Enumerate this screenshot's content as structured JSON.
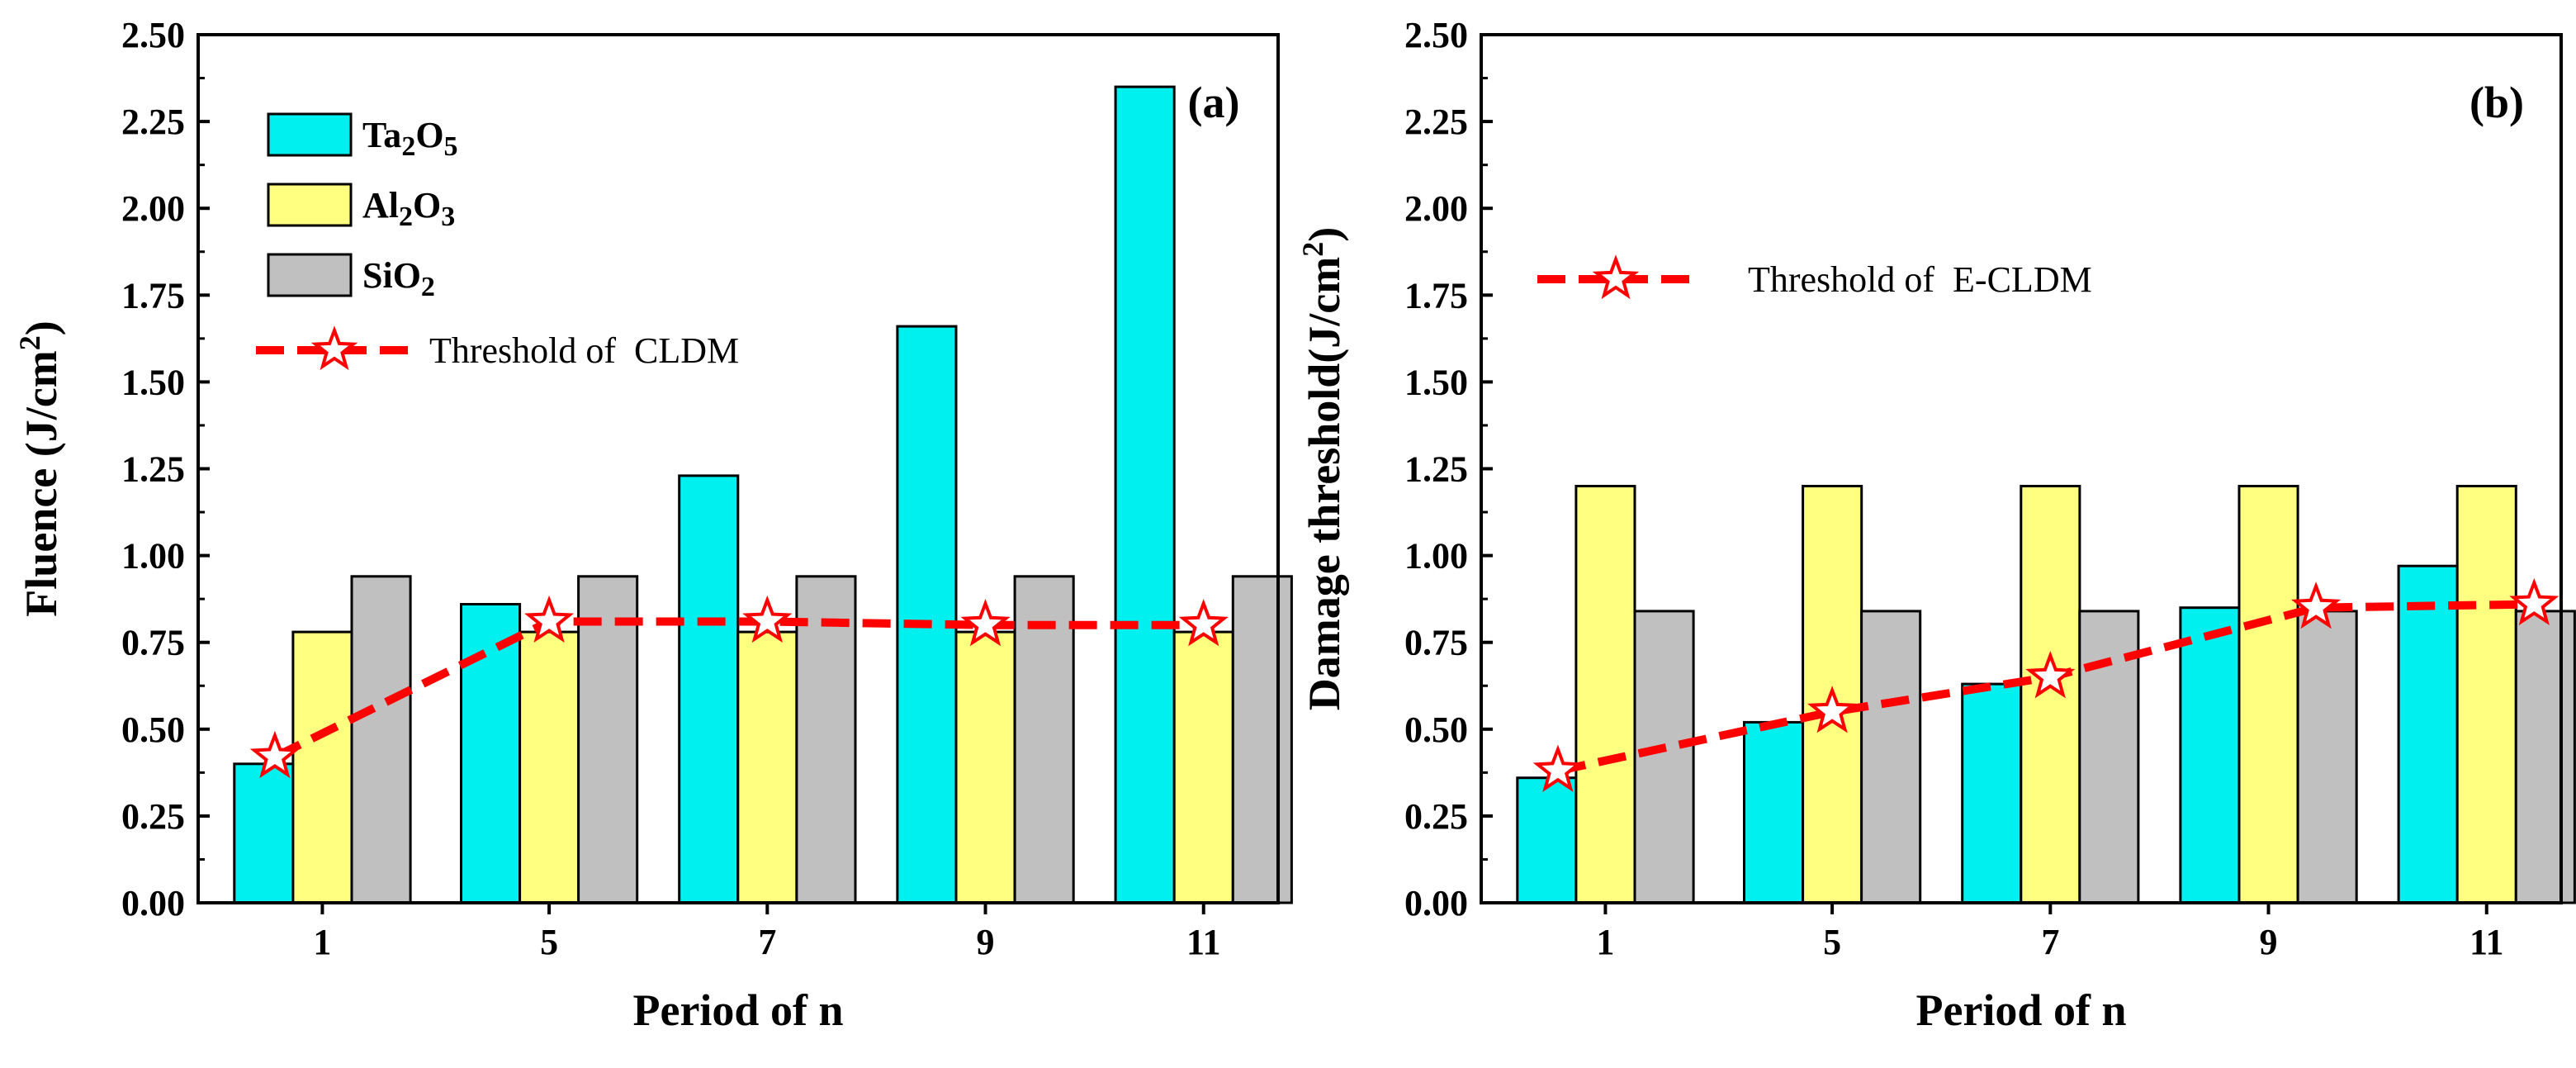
{
  "chart_data": [
    {
      "type": "bar",
      "panel_label": "(a)",
      "categories": [
        "1",
        "5",
        "7",
        "9",
        "11"
      ],
      "xlabel": "Period of n",
      "ylabel": "Fluence (J/cm²)",
      "ylabel_parts": {
        "base": "Fluence (J/cm",
        "sup": "2",
        "end": ")"
      },
      "ylim": [
        0,
        2.5
      ],
      "yticks": [
        "0.00",
        "0.25",
        "0.50",
        "0.75",
        "1.00",
        "1.25",
        "1.50",
        "1.75",
        "2.00",
        "2.25",
        "2.50"
      ],
      "legend_position": "top-left",
      "series": [
        {
          "name": "Ta₂O₅",
          "name_parts": [
            [
              "Ta",
              ""
            ],
            [
              "2",
              "sub"
            ],
            [
              "O",
              ""
            ],
            [
              "5",
              "sub"
            ]
          ],
          "color": "#00f0f0",
          "values": [
            0.4,
            0.86,
            1.23,
            1.66,
            2.35
          ]
        },
        {
          "name": "Al₂O₃",
          "name_parts": [
            [
              "Al",
              ""
            ],
            [
              "2",
              "sub"
            ],
            [
              "O",
              ""
            ],
            [
              "3",
              "sub"
            ]
          ],
          "color": "#ffff80",
          "values": [
            0.78,
            0.78,
            0.78,
            0.78,
            0.78
          ]
        },
        {
          "name": "SiO₂",
          "name_parts": [
            [
              "SiO",
              ""
            ],
            [
              "2",
              "sub"
            ]
          ],
          "color": "#c0c0c0",
          "values": [
            0.94,
            0.94,
            0.94,
            0.94,
            0.94
          ]
        }
      ],
      "line": {
        "name": "Threshold of  CLDM",
        "color": "#ff0000",
        "values": [
          0.42,
          0.81,
          0.81,
          0.8,
          0.8
        ],
        "x_offsets": [
          -0.27,
          0.0,
          0.0,
          0.0,
          0.0
        ]
      }
    },
    {
      "type": "bar",
      "panel_label": "(b)",
      "categories": [
        "1",
        "5",
        "7",
        "9",
        "11"
      ],
      "xlabel": "Period of n",
      "ylabel": "Damage threshold(J/cm²)",
      "ylabel_parts": {
        "base": "Damage threshold(J/cm",
        "sup": "2",
        "end": ")"
      },
      "ylim": [
        0,
        2.5
      ],
      "yticks": [
        "0.00",
        "0.25",
        "0.50",
        "0.75",
        "1.00",
        "1.25",
        "1.50",
        "1.75",
        "2.00",
        "2.25",
        "2.50"
      ],
      "legend_position": "upper-left",
      "series": [
        {
          "name": "Ta₂O₅",
          "color": "#00f0f0",
          "values": [
            0.36,
            0.52,
            0.63,
            0.85,
            0.97
          ]
        },
        {
          "name": "Al₂O₃",
          "color": "#ffff80",
          "values": [
            1.2,
            1.2,
            1.2,
            1.2,
            1.2
          ]
        },
        {
          "name": "SiO₂",
          "color": "#c0c0c0",
          "values": [
            0.84,
            0.84,
            0.84,
            0.84,
            0.84
          ]
        }
      ],
      "line": {
        "name": "Threshold of  E-CLDM",
        "color": "#ff0000",
        "values": [
          0.38,
          0.55,
          0.65,
          0.85,
          0.86
        ],
        "x_offsets": [
          -0.27,
          0.0,
          0.0,
          0.27,
          0.27
        ]
      }
    }
  ]
}
